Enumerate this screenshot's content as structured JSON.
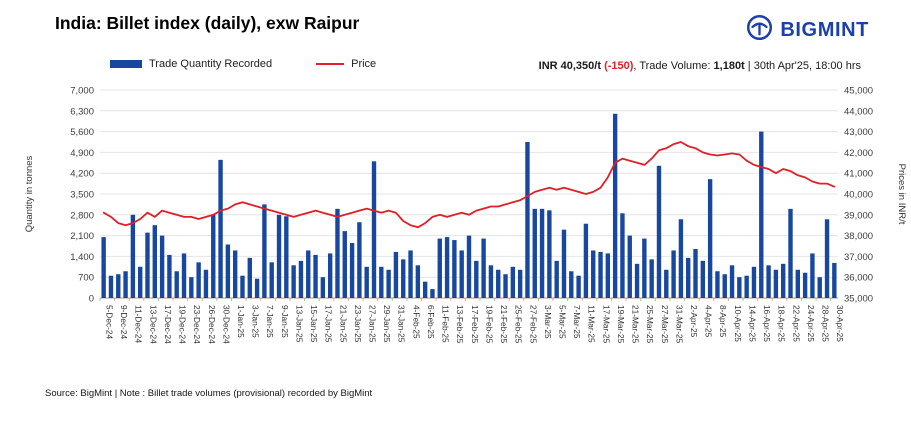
{
  "header": {
    "title": "India: Billet index (daily), exw Raipur",
    "brand": "BIGMINT",
    "brand_color": "#1c3fae"
  },
  "legend": [
    {
      "label": "Trade Quantity Recorded",
      "color": "#17479e",
      "type": "bar"
    },
    {
      "label": "Price",
      "color": "#e01f26",
      "type": "line"
    }
  ],
  "info": {
    "price": "INR 40,350/t",
    "change": " (-150)",
    "volume_prefix": ", Trade Volume: ",
    "volume": "1,180t",
    "timestamp": " | 30th Apr'25, 18:00 hrs"
  },
  "footer": "Source: BigMint | Note : Billet trade volumes (provisional) recorded by BigMint",
  "chart_data": {
    "type": "bar",
    "subtype": "bar+line combo",
    "title": "India: Billet index (daily), exw Raipur",
    "grid": true,
    "legend_position": "top",
    "label_every": 2,
    "left_axis": {
      "label": "Quantity in tonnes",
      "min": 0,
      "max": 7000,
      "step": 700
    },
    "right_axis": {
      "label": "Prices in INR/t",
      "min": 35000,
      "max": 45000,
      "step": 1000
    },
    "categories": [
      "5-Dec-24",
      "6-Dec-24",
      "9-Dec-24",
      "10-Dec-24",
      "11-Dec-24",
      "12-Dec-24",
      "13-Dec-24",
      "16-Dec-24",
      "17-Dec-24",
      "18-Dec-24",
      "19-Dec-24",
      "20-Dec-24",
      "23-Dec-24",
      "24-Dec-24",
      "26-Dec-24",
      "27-Dec-24",
      "30-Dec-24",
      "31-Dec-24",
      "1-Jan-25",
      "2-Jan-25",
      "3-Jan-25",
      "6-Jan-25",
      "7-Jan-25",
      "8-Jan-25",
      "9-Jan-25",
      "10-Jan-25",
      "13-Jan-25",
      "14-Jan-25",
      "15-Jan-25",
      "16-Jan-25",
      "17-Jan-25",
      "20-Jan-25",
      "21-Jan-25",
      "22-Jan-25",
      "23-Jan-25",
      "24-Jan-25",
      "27-Jan-25",
      "28-Jan-25",
      "29-Jan-25",
      "30-Jan-25",
      "31-Jan-25",
      "3-Feb-25",
      "4-Feb-25",
      "5-Feb-25",
      "6-Feb-25",
      "10-Feb-25",
      "11-Feb-25",
      "12-Feb-25",
      "13-Feb-25",
      "14-Feb-25",
      "17-Feb-25",
      "18-Feb-25",
      "19-Feb-25",
      "20-Feb-25",
      "21-Feb-25",
      "24-Feb-25",
      "25-Feb-25",
      "26-Feb-25",
      "27-Feb-25",
      "28-Feb-25",
      "3-Mar-25",
      "4-Mar-25",
      "5-Mar-25",
      "6-Mar-25",
      "7-Mar-25",
      "10-Mar-25",
      "11-Mar-25",
      "12-Mar-25",
      "17-Mar-25",
      "18-Mar-25",
      "19-Mar-25",
      "20-Mar-25",
      "21-Mar-25",
      "24-Mar-25",
      "25-Mar-25",
      "26-Mar-25",
      "27-Mar-25",
      "28-Mar-25",
      "31-Mar-25",
      "1-Apr-25",
      "2-Apr-25",
      "3-Apr-25",
      "4-Apr-25",
      "7-Apr-25",
      "8-Apr-25",
      "9-Apr-25",
      "10-Apr-25",
      "11-Apr-25",
      "14-Apr-25",
      "15-Apr-25",
      "16-Apr-25",
      "17-Apr-25",
      "18-Apr-25",
      "21-Apr-25",
      "22-Apr-25",
      "23-Apr-25",
      "24-Apr-25",
      "25-Apr-25",
      "28-Apr-25",
      "29-Apr-25",
      "30-Apr-25"
    ],
    "series": [
      {
        "name": "Trade Quantity Recorded",
        "type": "bar",
        "axis": "left",
        "color": "#17479e",
        "values": [
          2050,
          750,
          800,
          900,
          2800,
          1050,
          2200,
          2450,
          2100,
          1450,
          900,
          1500,
          700,
          1200,
          950,
          2800,
          4650,
          1800,
          1600,
          750,
          1350,
          650,
          3150,
          1200,
          2800,
          2750,
          1100,
          1250,
          1600,
          1450,
          700,
          1500,
          3000,
          2250,
          1850,
          2550,
          1050,
          4600,
          1050,
          950,
          1550,
          1300,
          1600,
          1100,
          550,
          300,
          2000,
          2050,
          1950,
          1600,
          2100,
          1250,
          2000,
          1100,
          950,
          800,
          1050,
          950,
          5250,
          3000,
          3000,
          2950,
          1250,
          2300,
          900,
          750,
          2500,
          1600,
          1550,
          1500,
          6200,
          2850,
          2100,
          1150,
          2000,
          1300,
          4450,
          950,
          1600,
          2650,
          1350,
          1650,
          1250,
          4000,
          900,
          800,
          1100,
          700,
          750,
          1050,
          5600,
          1100,
          950,
          1150,
          3000,
          950,
          850,
          1500,
          700,
          2650,
          1180
        ]
      },
      {
        "name": "Price",
        "type": "line",
        "axis": "right",
        "color": "#e01f26",
        "values": [
          39100,
          38900,
          38600,
          38500,
          38600,
          38800,
          39100,
          38900,
          39200,
          39100,
          39000,
          38900,
          38900,
          38800,
          38900,
          39000,
          39200,
          39300,
          39500,
          39600,
          39500,
          39400,
          39300,
          39200,
          39100,
          39000,
          38900,
          39000,
          39100,
          39200,
          39100,
          39000,
          38900,
          39000,
          39100,
          39200,
          39300,
          39200,
          39100,
          39200,
          39100,
          38700,
          38500,
          38400,
          38600,
          38900,
          39000,
          38900,
          39000,
          39100,
          39000,
          39200,
          39300,
          39400,
          39400,
          39500,
          39600,
          39700,
          39900,
          40100,
          40200,
          40300,
          40200,
          40300,
          40200,
          40100,
          40000,
          40100,
          40300,
          40800,
          41500,
          41700,
          41600,
          41500,
          41400,
          41700,
          42100,
          42200,
          42400,
          42500,
          42300,
          42200,
          42000,
          41900,
          41850,
          41900,
          41950,
          41900,
          41600,
          41400,
          41300,
          41200,
          41000,
          41200,
          41100,
          40900,
          40800,
          40600,
          40500,
          40500,
          40350
        ]
      }
    ]
  }
}
